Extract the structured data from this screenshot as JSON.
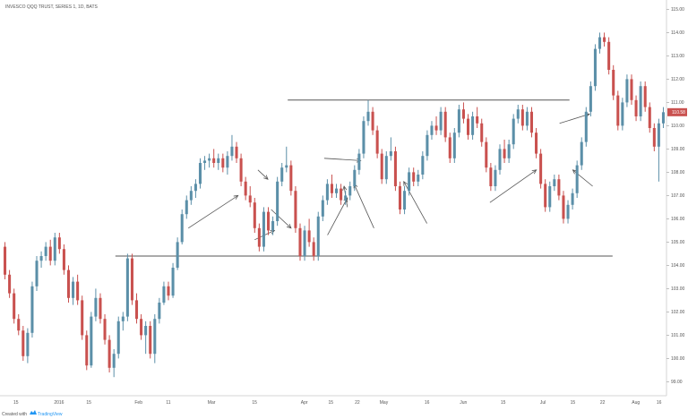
{
  "chart_data": {
    "type": "candlestick",
    "title": "INVESCO QQQ TRUST, SERIES 1, 1D, BATS",
    "x_labels": [
      "15",
      "2016",
      "15",
      "Feb",
      "11",
      "Mar",
      "15",
      "Apr",
      "15",
      "22",
      "May",
      "16",
      "Jun",
      "15",
      "Jul",
      "15",
      "22",
      "Aug",
      "16"
    ],
    "y_ticks": [
      "99.00",
      "100.00",
      "101.00",
      "102.00",
      "103.00",
      "104.00",
      "105.00",
      "106.00",
      "107.00",
      "108.00",
      "109.00",
      "110.00",
      "111.00",
      "112.00",
      "113.00",
      "114.00",
      "115.00"
    ],
    "ylim": [
      98.4,
      115.4
    ],
    "current_price_label": "110.58",
    "current_price": 110.58,
    "horizontal_levels": [
      111.1,
      104.4
    ],
    "up_color": "#5b8fa8",
    "down_color": "#c9514f",
    "candles": [
      [
        104.8,
        105.0,
        103.4,
        103.6
      ],
      [
        103.6,
        103.8,
        102.6,
        102.8
      ],
      [
        102.8,
        103.0,
        101.5,
        101.7
      ],
      [
        101.7,
        101.9,
        101.0,
        101.2
      ],
      [
        101.2,
        101.4,
        99.9,
        100.1
      ],
      [
        100.1,
        101.3,
        99.8,
        101.1
      ],
      [
        101.1,
        103.3,
        100.9,
        103.1
      ],
      [
        103.1,
        104.4,
        102.9,
        104.2
      ],
      [
        104.2,
        104.6,
        103.9,
        104.4
      ],
      [
        104.4,
        105.0,
        104.2,
        104.8
      ],
      [
        104.8,
        105.1,
        104.0,
        104.2
      ],
      [
        104.2,
        105.4,
        104.0,
        105.2
      ],
      [
        105.2,
        105.4,
        104.5,
        104.7
      ],
      [
        104.7,
        104.9,
        103.6,
        103.8
      ],
      [
        103.8,
        104.0,
        102.4,
        102.6
      ],
      [
        102.6,
        103.5,
        102.3,
        103.3
      ],
      [
        103.3,
        103.6,
        102.3,
        102.5
      ],
      [
        102.5,
        102.7,
        100.8,
        101.0
      ],
      [
        101.0,
        101.2,
        99.5,
        99.7
      ],
      [
        99.7,
        102.0,
        99.6,
        101.8
      ],
      [
        101.8,
        103.0,
        101.6,
        102.6
      ],
      [
        102.6,
        102.8,
        101.5,
        101.7
      ],
      [
        101.7,
        101.9,
        100.6,
        100.8
      ],
      [
        100.8,
        101.0,
        99.4,
        99.6
      ],
      [
        99.6,
        100.4,
        99.2,
        100.2
      ],
      [
        100.2,
        101.8,
        100.0,
        101.6
      ],
      [
        101.6,
        102.0,
        101.2,
        101.8
      ],
      [
        101.8,
        104.5,
        101.6,
        104.3
      ],
      [
        104.3,
        104.5,
        102.3,
        102.5
      ],
      [
        102.5,
        102.8,
        101.5,
        101.7
      ],
      [
        101.7,
        101.9,
        100.8,
        101.0
      ],
      [
        101.0,
        101.6,
        100.2,
        101.4
      ],
      [
        101.4,
        101.6,
        100.0,
        100.2
      ],
      [
        100.2,
        101.9,
        99.8,
        101.7
      ],
      [
        101.7,
        102.6,
        101.5,
        102.4
      ],
      [
        102.4,
        103.3,
        102.3,
        103.1
      ],
      [
        103.1,
        103.3,
        102.5,
        102.7
      ],
      [
        102.7,
        104.1,
        102.6,
        103.9
      ],
      [
        103.9,
        105.2,
        103.8,
        105.0
      ],
      [
        105.0,
        106.4,
        104.9,
        106.2
      ],
      [
        106.2,
        107.0,
        106.0,
        106.8
      ],
      [
        106.8,
        107.4,
        106.6,
        107.2
      ],
      [
        107.2,
        107.7,
        106.9,
        107.5
      ],
      [
        107.5,
        108.6,
        107.3,
        108.4
      ],
      [
        108.4,
        108.7,
        108.1,
        108.5
      ],
      [
        108.5,
        108.8,
        108.2,
        108.6
      ],
      [
        108.6,
        109.0,
        108.2,
        108.4
      ],
      [
        108.4,
        108.8,
        108.1,
        108.6
      ],
      [
        108.6,
        108.8,
        108.0,
        108.2
      ],
      [
        108.2,
        108.9,
        107.9,
        108.7
      ],
      [
        108.7,
        109.6,
        108.5,
        109.1
      ],
      [
        109.1,
        109.3,
        108.4,
        108.6
      ],
      [
        108.6,
        108.8,
        107.4,
        107.6
      ],
      [
        107.6,
        107.8,
        106.8,
        107.0
      ],
      [
        107.0,
        107.4,
        106.5,
        106.7
      ],
      [
        106.7,
        106.9,
        105.4,
        105.6
      ],
      [
        105.6,
        105.8,
        104.6,
        104.8
      ],
      [
        104.8,
        106.5,
        104.6,
        106.3
      ],
      [
        106.3,
        106.5,
        105.3,
        105.5
      ],
      [
        105.5,
        106.1,
        105.3,
        105.9
      ],
      [
        105.9,
        107.8,
        105.7,
        107.6
      ],
      [
        107.6,
        108.4,
        107.4,
        108.2
      ],
      [
        108.2,
        109.1,
        108.0,
        108.3
      ],
      [
        108.3,
        108.5,
        107.0,
        107.2
      ],
      [
        107.2,
        107.4,
        105.4,
        105.6
      ],
      [
        105.6,
        105.8,
        104.2,
        104.4
      ],
      [
        104.4,
        105.7,
        104.2,
        105.5
      ],
      [
        105.5,
        106.0,
        104.8,
        105.0
      ],
      [
        105.0,
        105.2,
        104.2,
        104.4
      ],
      [
        104.4,
        106.3,
        104.2,
        106.1
      ],
      [
        106.1,
        107.0,
        105.9,
        106.8
      ],
      [
        106.8,
        107.7,
        106.6,
        107.5
      ],
      [
        107.5,
        107.9,
        106.9,
        107.1
      ],
      [
        107.1,
        107.5,
        106.9,
        107.3
      ],
      [
        107.3,
        107.5,
        106.6,
        106.8
      ],
      [
        106.8,
        107.2,
        106.6,
        107.0
      ],
      [
        107.0,
        107.6,
        106.8,
        107.4
      ],
      [
        107.4,
        108.3,
        107.2,
        108.1
      ],
      [
        108.1,
        109.0,
        107.9,
        108.8
      ],
      [
        108.8,
        110.4,
        108.6,
        110.2
      ],
      [
        110.2,
        111.1,
        110.0,
        110.6
      ],
      [
        110.6,
        110.8,
        109.6,
        109.8
      ],
      [
        109.8,
        110.0,
        108.6,
        108.8
      ],
      [
        108.8,
        109.0,
        107.5,
        107.7
      ],
      [
        107.7,
        108.9,
        107.5,
        108.7
      ],
      [
        108.7,
        109.5,
        108.5,
        108.9
      ],
      [
        108.9,
        109.1,
        107.2,
        107.4
      ],
      [
        107.4,
        107.6,
        106.2,
        106.4
      ],
      [
        106.4,
        107.4,
        106.2,
        107.2
      ],
      [
        107.2,
        108.2,
        107.0,
        108.0
      ],
      [
        108.0,
        108.2,
        107.4,
        107.6
      ],
      [
        107.6,
        108.1,
        107.4,
        107.9
      ],
      [
        107.9,
        108.9,
        107.7,
        108.7
      ],
      [
        108.7,
        109.8,
        108.5,
        109.6
      ],
      [
        109.6,
        110.2,
        109.4,
        110.0
      ],
      [
        110.0,
        110.4,
        109.6,
        109.8
      ],
      [
        109.8,
        110.8,
        109.6,
        110.6
      ],
      [
        110.6,
        110.8,
        109.3,
        109.5
      ],
      [
        109.5,
        109.7,
        108.4,
        108.6
      ],
      [
        108.6,
        109.9,
        108.4,
        109.7
      ],
      [
        109.7,
        110.9,
        109.5,
        110.7
      ],
      [
        110.7,
        111.0,
        110.1,
        110.3
      ],
      [
        110.3,
        110.5,
        109.4,
        109.6
      ],
      [
        109.6,
        110.6,
        109.4,
        110.4
      ],
      [
        110.4,
        110.8,
        109.9,
        110.1
      ],
      [
        110.1,
        110.3,
        109.1,
        109.3
      ],
      [
        109.3,
        109.5,
        108.0,
        108.2
      ],
      [
        108.2,
        108.4,
        107.2,
        107.4
      ],
      [
        107.4,
        108.3,
        107.2,
        108.1
      ],
      [
        108.1,
        109.2,
        107.9,
        109.0
      ],
      [
        109.0,
        109.4,
        108.4,
        108.6
      ],
      [
        108.6,
        109.4,
        108.4,
        109.2
      ],
      [
        109.2,
        110.5,
        109.0,
        110.3
      ],
      [
        110.3,
        110.9,
        110.1,
        110.7
      ],
      [
        110.7,
        110.9,
        109.8,
        110.0
      ],
      [
        110.0,
        110.8,
        109.8,
        110.6
      ],
      [
        110.6,
        110.8,
        109.5,
        109.7
      ],
      [
        109.7,
        109.9,
        108.6,
        108.8
      ],
      [
        108.8,
        109.0,
        107.3,
        107.5
      ],
      [
        107.5,
        107.7,
        106.3,
        106.5
      ],
      [
        106.5,
        107.6,
        106.3,
        107.4
      ],
      [
        107.4,
        107.9,
        107.2,
        107.7
      ],
      [
        107.7,
        107.9,
        106.8,
        107.0
      ],
      [
        107.0,
        107.2,
        105.8,
        106.0
      ],
      [
        106.0,
        106.8,
        105.8,
        106.6
      ],
      [
        106.6,
        107.3,
        106.4,
        107.1
      ],
      [
        107.1,
        108.5,
        106.9,
        108.3
      ],
      [
        108.3,
        109.5,
        108.1,
        109.3
      ],
      [
        109.3,
        110.8,
        109.1,
        110.6
      ],
      [
        110.6,
        111.9,
        110.4,
        111.7
      ],
      [
        111.7,
        113.5,
        111.5,
        113.3
      ],
      [
        113.3,
        114.0,
        113.1,
        113.8
      ],
      [
        113.8,
        114.0,
        113.4,
        113.6
      ],
      [
        113.6,
        113.8,
        112.2,
        112.4
      ],
      [
        112.4,
        112.6,
        111.1,
        111.3
      ],
      [
        111.3,
        111.5,
        109.8,
        110.0
      ],
      [
        110.0,
        111.2,
        109.8,
        111.0
      ],
      [
        111.0,
        112.2,
        110.8,
        112.0
      ],
      [
        112.0,
        112.2,
        110.9,
        111.1
      ],
      [
        111.1,
        111.3,
        110.2,
        110.4
      ],
      [
        110.4,
        111.9,
        110.2,
        111.7
      ],
      [
        111.7,
        111.9,
        110.6,
        110.8
      ],
      [
        110.8,
        111.0,
        109.7,
        109.9
      ],
      [
        109.9,
        110.1,
        108.9,
        109.1
      ],
      [
        109.1,
        110.3,
        107.6,
        110.1
      ],
      [
        110.1,
        110.8,
        109.9,
        110.58
      ]
    ],
    "arrows": [
      [
        105.6,
        107.0
      ],
      [
        108.1,
        107.7
      ],
      [
        105.1,
        105.5
      ],
      [
        106.4,
        105.6
      ],
      [
        105.3,
        106.9
      ],
      [
        106.5,
        107.4
      ],
      [
        108.6,
        108.5
      ],
      [
        105.6,
        107.5
      ],
      [
        105.8,
        107.6
      ],
      [
        106.7,
        108.1
      ],
      [
        110.1,
        110.5
      ],
      [
        107.4,
        108.1
      ]
    ]
  },
  "footer": {
    "prefix": "Created with",
    "brand": "TradingView"
  }
}
